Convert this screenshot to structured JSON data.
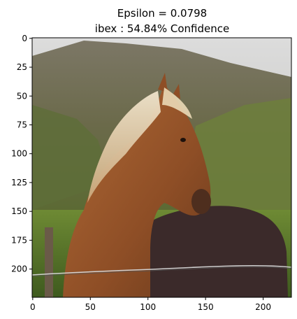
{
  "title": {
    "line1": "Epsilon = 0.0798",
    "line2": "ibex : 54.84% Confidence"
  },
  "axes": {
    "x_ticks": [
      0,
      50,
      100,
      150,
      200
    ],
    "y_ticks": [
      0,
      25,
      50,
      75,
      100,
      125,
      150,
      175,
      200
    ],
    "x_range": [
      0,
      224
    ],
    "y_range": [
      0,
      224
    ],
    "y_inverted": true
  },
  "image": {
    "subject": "horse",
    "description_icon": "horse-photo"
  },
  "colors": {
    "axis": "#000000",
    "sky": "#e6e6e6",
    "mountain": "#6f6b5a",
    "grass": "#5d7a2c",
    "horse": "#9a5a2e",
    "mane": "#e8d8b8",
    "dark_horse": "#3b2a2a"
  }
}
